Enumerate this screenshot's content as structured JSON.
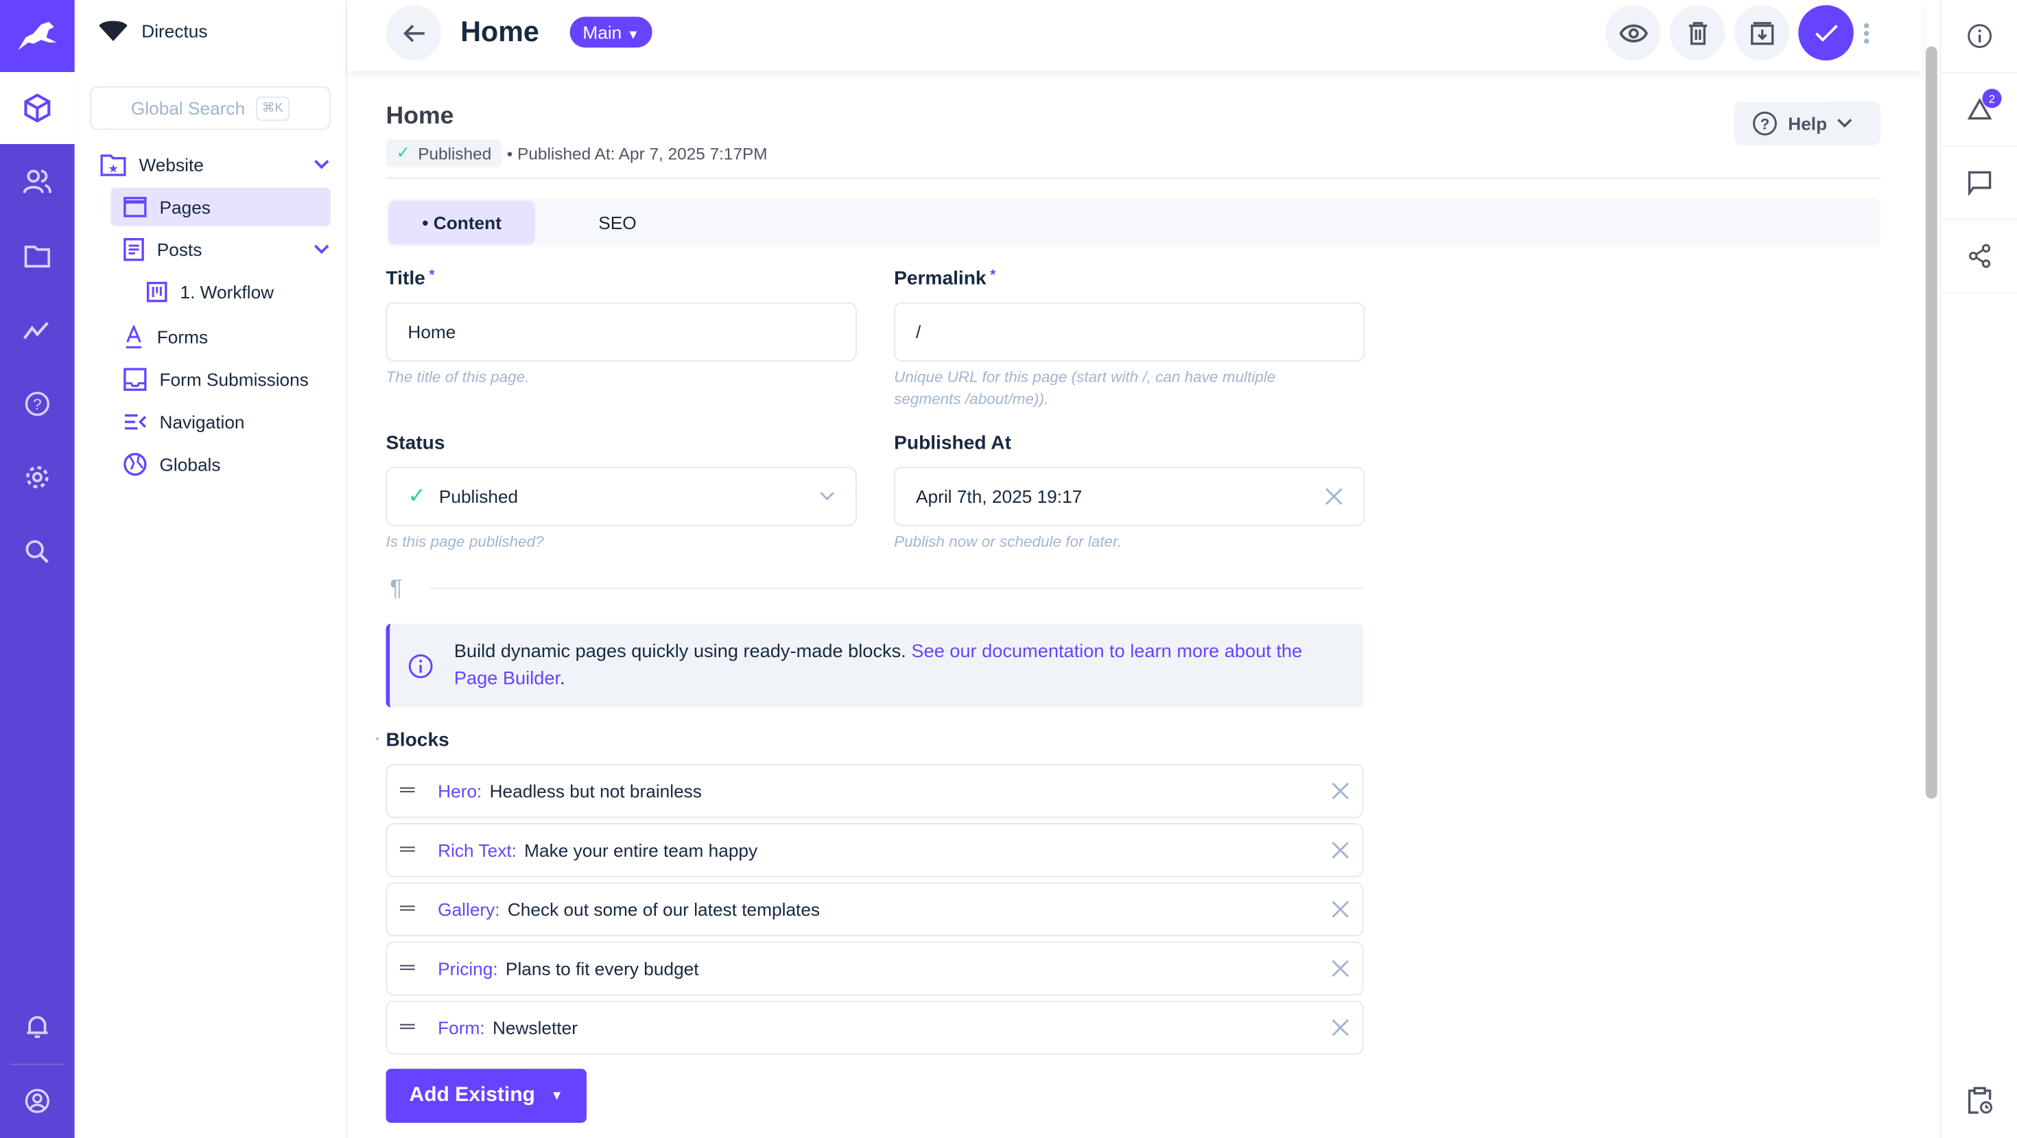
{
  "project": {
    "name": "Directus"
  },
  "search": {
    "placeholder": "Global Search",
    "shortcut": "⌘K"
  },
  "nav": {
    "items": [
      {
        "label": "Website",
        "icon": "folder-star-icon",
        "expanded": true
      },
      {
        "label": "Pages",
        "icon": "web-page-icon",
        "active": true
      },
      {
        "label": "Posts",
        "icon": "article-icon",
        "expanded": true
      },
      {
        "label": "1. Workflow",
        "icon": "kanban-icon"
      },
      {
        "label": "Forms",
        "icon": "format-text-icon"
      },
      {
        "label": "Form Submissions",
        "icon": "inbox-icon"
      },
      {
        "label": "Navigation",
        "icon": "menu-open-icon"
      },
      {
        "label": "Globals",
        "icon": "globe-icon"
      }
    ]
  },
  "header": {
    "title": "Home",
    "version": "Main"
  },
  "item": {
    "title": "Home",
    "status_badge": "Published",
    "published_meta": "• Published At: Apr 7, 2025 7:17PM",
    "help": "Help"
  },
  "tabs": [
    {
      "label": "Content",
      "active": true
    },
    {
      "label": "SEO"
    }
  ],
  "fields": {
    "title": {
      "label": "Title",
      "value": "Home",
      "hint": "The title of this page."
    },
    "permalink": {
      "label": "Permalink",
      "value": "/",
      "hint": "Unique URL for this page (start with /, can have multiple segments /about/me))."
    },
    "status": {
      "label": "Status",
      "value": "Published",
      "hint": "Is this page published?"
    },
    "published_at": {
      "label": "Published At",
      "value": "April 7th, 2025 19:17",
      "hint": "Publish now or schedule for later."
    }
  },
  "notice": {
    "text": "Build dynamic pages quickly using ready-made blocks.",
    "link": "See our documentation to learn more about the Page Builder",
    "end": "."
  },
  "blocks": {
    "label": "Blocks",
    "items": [
      {
        "type": "Hero:",
        "title": "Headless but not brainless"
      },
      {
        "type": "Rich Text:",
        "title": "Make your entire team happy"
      },
      {
        "type": "Gallery:",
        "title": "Check out some of our latest templates"
      },
      {
        "type": "Pricing:",
        "title": "Plans to fit every budget"
      },
      {
        "type": "Form:",
        "title": "Newsletter"
      }
    ],
    "add_label": "Add Existing"
  },
  "sidebar": {
    "notifications_count": "2"
  },
  "colors": {
    "accent": "#6644ff",
    "module_bar": "#5a45d6",
    "success": "#2ecda7"
  }
}
